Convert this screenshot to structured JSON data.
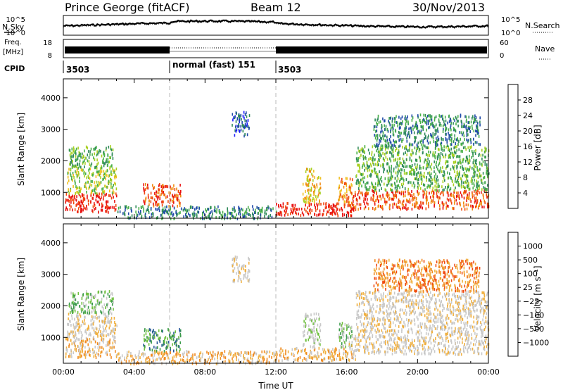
{
  "header": {
    "station": "Prince George (fitACF)",
    "beam": "Beam 12",
    "date": "30/Nov/2013"
  },
  "top_panels": {
    "nsky_label": "N.Sky",
    "nsearch_label": "N.Search",
    "freq_label_line1": "Freq.",
    "freq_label_line2": "[MHz]",
    "nave_label": "Nave",
    "cpid_label": "CPID",
    "noise_ticks": [
      "10^5",
      "10^0"
    ],
    "freq_ticks": [
      "18",
      "8"
    ],
    "nave_ticks": [
      "60",
      "0"
    ],
    "cpid_segments": [
      {
        "label": "3503",
        "start_h": 0,
        "end_h": 6
      },
      {
        "label": "normal (fast) 151",
        "start_h": 6,
        "end_h": 12
      },
      {
        "label": "3503",
        "start_h": 12,
        "end_h": 24
      }
    ]
  },
  "colors": {
    "power_scale": [
      "#1a1aff",
      "#1f4aa8",
      "#2f8a5a",
      "#4ab04a",
      "#a8d020",
      "#f0c020",
      "#f08a10",
      "#f04a10",
      "#e81010"
    ],
    "velocity_scale": [
      "#e81010",
      "#f04a10",
      "#f08a20",
      "#f0b040",
      "#c8c8c8",
      "#c8c8c8",
      "#70c040",
      "#3a9a4a",
      "#2a5a9a",
      "#1a1aaa"
    ]
  },
  "chart_data": [
    {
      "type": "heatmap",
      "name": "power-panel",
      "xlabel": "",
      "ylabel": "Slant Range [km]",
      "x_ticks_h": [
        0,
        4,
        8,
        12,
        16,
        20,
        24
      ],
      "y_ticks": [
        1000,
        2000,
        3000,
        4000
      ],
      "ylim": [
        180,
        4600
      ],
      "xlim": [
        0,
        24
      ],
      "colorbar_label": "Power [dB]",
      "colorbar_ticks": [
        "4",
        "8",
        "12",
        "16",
        "20",
        "24",
        "28"
      ],
      "regions": [
        {
          "t0": 0.1,
          "t1": 3.0,
          "r0": 400,
          "r1": 1000,
          "level": 8
        },
        {
          "t0": 0.2,
          "t1": 3.0,
          "r0": 1000,
          "r1": 1800,
          "level": 4
        },
        {
          "t0": 0.3,
          "t1": 2.8,
          "r0": 1800,
          "r1": 2500,
          "level": 3
        },
        {
          "t0": 4.5,
          "t1": 6.6,
          "r0": 600,
          "r1": 1300,
          "level": 7
        },
        {
          "t0": 3.0,
          "t1": 12.0,
          "r0": 200,
          "r1": 600,
          "level": 2
        },
        {
          "t0": 12.0,
          "t1": 16.5,
          "r0": 300,
          "r1": 700,
          "level": 8
        },
        {
          "t0": 13.5,
          "t1": 14.5,
          "r0": 700,
          "r1": 1800,
          "level": 5
        },
        {
          "t0": 15.5,
          "t1": 16.3,
          "r0": 700,
          "r1": 1500,
          "level": 6
        },
        {
          "t0": 16.0,
          "t1": 24.0,
          "r0": 500,
          "r1": 1100,
          "level": 7
        },
        {
          "t0": 16.5,
          "t1": 24.0,
          "r0": 1100,
          "r1": 2500,
          "level": 3
        },
        {
          "t0": 17.5,
          "t1": 23.5,
          "r0": 2500,
          "r1": 3500,
          "level": 2
        },
        {
          "t0": 9.5,
          "t1": 10.5,
          "r0": 2800,
          "r1": 3600,
          "level": 1
        }
      ]
    },
    {
      "type": "heatmap",
      "name": "velocity-panel",
      "xlabel": "Time UT",
      "ylabel": "Slant Range [km]",
      "x_tick_labels": [
        "00:00",
        "04:00",
        "08:00",
        "12:00",
        "16:00",
        "20:00",
        "00:00"
      ],
      "x_ticks_h": [
        0,
        4,
        8,
        12,
        16,
        20,
        24
      ],
      "y_ticks": [
        1000,
        2000,
        3000,
        4000
      ],
      "ylim": [
        180,
        4600
      ],
      "xlim": [
        0,
        24
      ],
      "colorbar_label": "Velocity [m s⁻¹]",
      "colorbar_ticks": [
        "1000",
        "500",
        "100",
        "25",
        "−25",
        "−100",
        "−500",
        "−1000"
      ],
      "regions": [
        {
          "t0": 0.1,
          "t1": 3.0,
          "r0": 400,
          "r1": 1000,
          "level": 3
        },
        {
          "t0": 0.2,
          "t1": 3.0,
          "r0": 1000,
          "r1": 1800,
          "level": 4
        },
        {
          "t0": 0.3,
          "t1": 2.8,
          "r0": 1800,
          "r1": 2500,
          "level": 6
        },
        {
          "t0": 4.5,
          "t1": 6.6,
          "r0": 600,
          "r1": 1300,
          "level": 7
        },
        {
          "t0": 3.0,
          "t1": 12.0,
          "r0": 200,
          "r1": 600,
          "level": 3
        },
        {
          "t0": 12.0,
          "t1": 16.5,
          "r0": 300,
          "r1": 700,
          "level": 3
        },
        {
          "t0": 13.5,
          "t1": 14.5,
          "r0": 700,
          "r1": 1800,
          "level": 5
        },
        {
          "t0": 15.5,
          "t1": 16.3,
          "r0": 700,
          "r1": 1500,
          "level": 6
        },
        {
          "t0": 16.0,
          "t1": 24.0,
          "r0": 500,
          "r1": 1100,
          "level": 4
        },
        {
          "t0": 16.5,
          "t1": 24.0,
          "r0": 1100,
          "r1": 2500,
          "level": 4
        },
        {
          "t0": 17.5,
          "t1": 23.5,
          "r0": 2500,
          "r1": 3500,
          "level": 2
        },
        {
          "t0": 9.5,
          "t1": 10.5,
          "r0": 2800,
          "r1": 3600,
          "level": 4
        }
      ]
    }
  ]
}
